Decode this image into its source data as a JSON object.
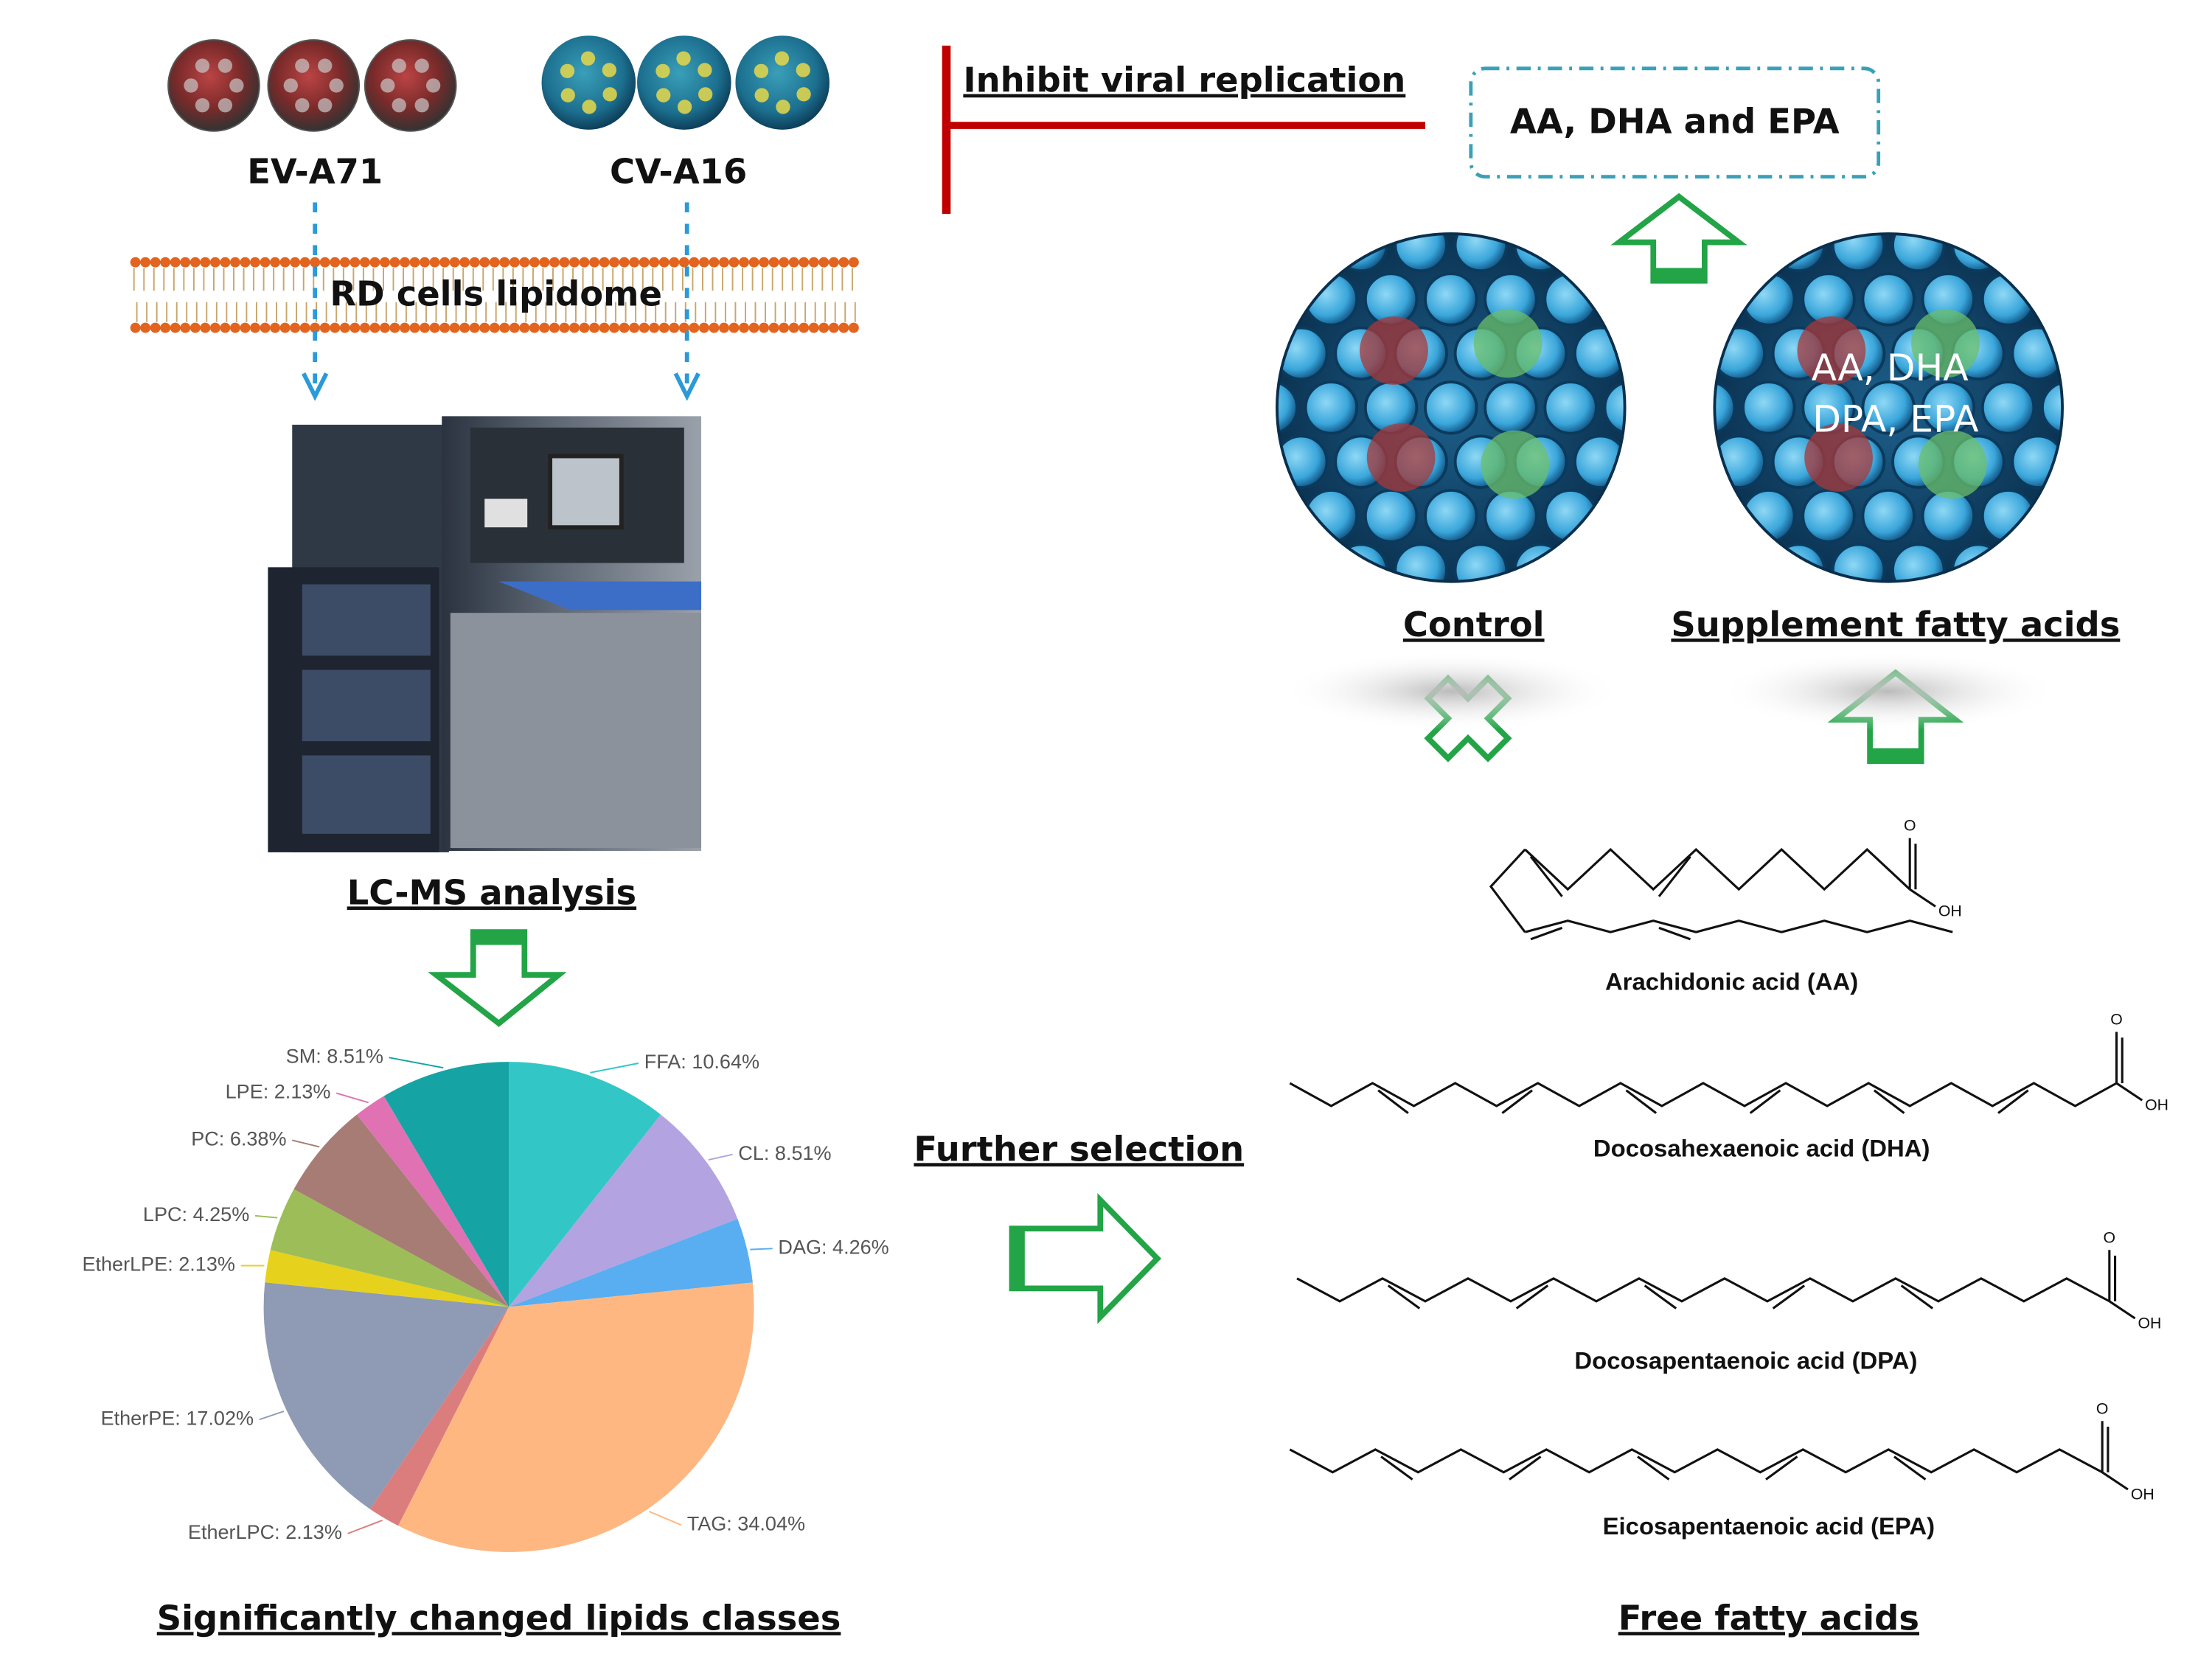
{
  "top": {
    "viruses": [
      "EV-A71",
      "CV-A16"
    ],
    "membrane": "RD cells lipidome",
    "instrument": "LC-MS analysis",
    "inhibit": "Inhibit viral replication",
    "result": "AA, DHA and EPA"
  },
  "cells": {
    "control": "Control",
    "supplement": "Supplement fatty acids",
    "supplement_lines": [
      "AA, DHA",
      "DPA, EPA"
    ]
  },
  "pie": {
    "title": "Significantly changed lipids classes",
    "slices": [
      {
        "label": "FFA: 10.64%",
        "value": 10.64,
        "color": "#33c6c6"
      },
      {
        "label": "CL: 8.51%",
        "value": 8.51,
        "color": "#b3a3e0"
      },
      {
        "label": "DAG: 4.26%",
        "value": 4.26,
        "color": "#58aef0"
      },
      {
        "label": "TAG: 34.04%",
        "value": 34.04,
        "color": "#ffb782"
      },
      {
        "label": "EtherLPC: 2.13%",
        "value": 2.13,
        "color": "#dc7d7d"
      },
      {
        "label": "EtherPE: 17.02%",
        "value": 17.02,
        "color": "#8f9ab4"
      },
      {
        "label": "EtherLPE: 2.13%",
        "value": 2.13,
        "color": "#e6d21c"
      },
      {
        "label": "LPC: 4.25%",
        "value": 4.25,
        "color": "#9cbd58"
      },
      {
        "label": "PC: 6.38%",
        "value": 6.38,
        "color": "#a77c74"
      },
      {
        "label": "LPE: 2.13%",
        "value": 2.13,
        "color": "#e072b4"
      },
      {
        "label": "SM: 8.51%",
        "value": 8.51,
        "color": "#15a3a3"
      }
    ]
  },
  "selection": "Further selection",
  "acids": {
    "title": "Free fatty acids",
    "items": [
      {
        "name": "Arachidonic acid (AA)",
        "o": "O",
        "oh": "OH"
      },
      {
        "name": "Docosahexaenoic acid (DHA)",
        "o": "O",
        "oh": "OH"
      },
      {
        "name": "Docosapentaenoic acid (DPA)",
        "o": "O",
        "oh": "OH"
      },
      {
        "name": "Eicosapentaenoic acid (EPA)",
        "o": "O",
        "oh": "OH"
      }
    ]
  }
}
